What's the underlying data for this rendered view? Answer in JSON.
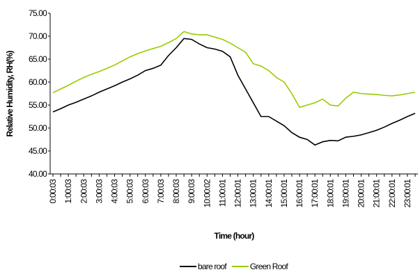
{
  "chart_data": {
    "type": "line",
    "title_y": "Relative Humidity, RH(%)",
    "xlabel": "Time (hour)",
    "categories": [
      "0:00:03",
      null,
      "1:00:03",
      null,
      "2:00:03",
      null,
      "3:00:03",
      null,
      "4:00:03",
      null,
      "5:00:03",
      null,
      "6:00:03",
      null,
      "7:00:03",
      null,
      "8:00:03",
      null,
      "9:00:03",
      null,
      "10:00:02",
      null,
      "11:00:01",
      null,
      "12:00:01",
      null,
      "13:00:01",
      null,
      "14:00:01",
      null,
      "15:00:01",
      null,
      "16:00:01",
      null,
      "17:00:01",
      null,
      "18:00:01",
      null,
      "19:00:01",
      null,
      "20:00:01",
      null,
      "21:00:01",
      null,
      "22:00:01",
      null,
      "23:00:01",
      null
    ],
    "series": [
      {
        "name": "bare roof",
        "color": "#000000",
        "values": [
          53.5,
          54.2,
          55,
          55.6,
          56.3,
          57,
          57.8,
          58.5,
          59.2,
          60,
          60.7,
          61.5,
          62.5,
          63,
          63.7,
          65.8,
          67.5,
          69.5,
          69.3,
          68.3,
          67.5,
          67.2,
          66.7,
          65.5,
          61.5,
          58.5,
          55.5,
          52.5,
          52.5,
          51.5,
          50.5,
          49,
          48,
          47.5,
          46.3,
          47,
          47.3,
          47.2,
          48,
          48.2,
          48.5,
          49,
          49.5,
          50.2,
          51,
          51.7,
          52.5,
          53.2
        ]
      },
      {
        "name": "Green Roof",
        "color": "#99cc00",
        "values": [
          57.7,
          58.5,
          59.3,
          60.2,
          61,
          61.7,
          62.3,
          63,
          63.7,
          64.6,
          65.5,
          66.2,
          66.8,
          67.3,
          67.8,
          68.6,
          69.5,
          71,
          70.5,
          70.3,
          70.3,
          69.8,
          69.3,
          68.5,
          67.5,
          66.5,
          64,
          63.5,
          62.5,
          61,
          60,
          57.5,
          54.5,
          55,
          55.5,
          56.3,
          55,
          54.8,
          56.5,
          57.8,
          57.5,
          57.4,
          57.3,
          57.1,
          57,
          57.2,
          57.5,
          57.8
        ]
      }
    ],
    "ylim": [
      40,
      75
    ],
    "yticks": [
      {
        "value": 40,
        "label": "40.00"
      },
      {
        "value": 45,
        "label": "45.00"
      },
      {
        "value": 50,
        "label": "50.00"
      },
      {
        "value": 55,
        "label": "55.00"
      },
      {
        "value": 60,
        "label": "60.00"
      },
      {
        "value": 65,
        "label": "65.00"
      },
      {
        "value": 70,
        "label": "70.00"
      },
      {
        "value": 75,
        "label": "75.00"
      }
    ],
    "legend": "bottom"
  }
}
